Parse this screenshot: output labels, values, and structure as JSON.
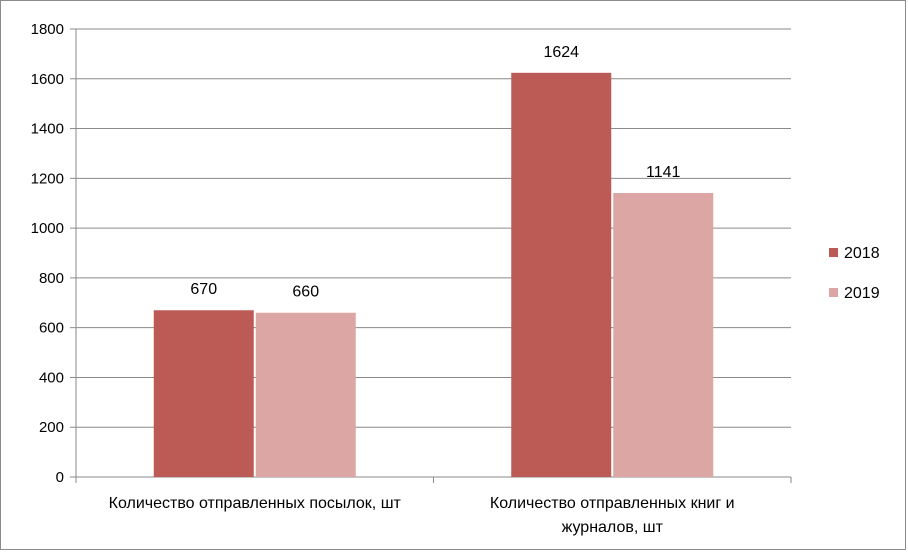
{
  "chart_data": {
    "type": "bar",
    "categories": [
      [
        "Количество отправленных посылок, шт"
      ],
      [
        "Количество отправленных книг и",
        "журналов, шт"
      ]
    ],
    "series": [
      {
        "name": "2018",
        "values": [
          670,
          1624
        ],
        "color": "#bc5a55"
      },
      {
        "name": "2019",
        "values": [
          660,
          1141
        ],
        "color": "#dba6a4"
      }
    ],
    "ylim": [
      0,
      1800
    ],
    "yticks": [
      0,
      200,
      400,
      600,
      800,
      1000,
      1200,
      1400,
      1600,
      1800
    ],
    "grid": true,
    "legend": "right"
  }
}
